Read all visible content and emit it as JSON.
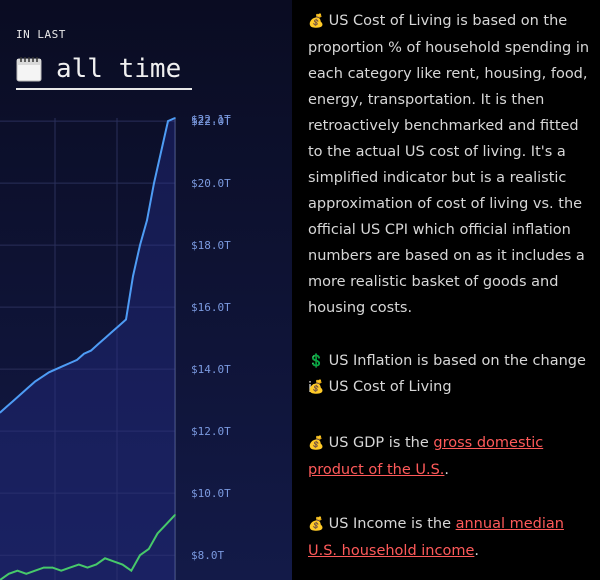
{
  "range": {
    "label": "IN LAST",
    "value": "all time",
    "icon": "calendar-icon"
  },
  "chart_data": {
    "type": "line",
    "y_ticks": [
      "$22.1T",
      "$22.0T",
      "$20.0T",
      "$18.0T",
      "$16.0T",
      "$14.0T",
      "$12.0T",
      "$10.0T",
      "$8.0T"
    ],
    "ylim": [
      7.2,
      22.1
    ],
    "series": [
      {
        "color": "#4e9cf5",
        "values": [
          12.6,
          12.8,
          13.0,
          13.2,
          13.4,
          13.6,
          13.75,
          13.9,
          14.0,
          14.1,
          14.2,
          14.3,
          14.5,
          14.6,
          14.8,
          15.0,
          15.2,
          15.4,
          15.6,
          17.0,
          18.0,
          18.8,
          20.0,
          21.0,
          22.0,
          22.1
        ]
      },
      {
        "color": "#47c96a",
        "values": [
          7.2,
          7.4,
          7.5,
          7.4,
          7.5,
          7.6,
          7.6,
          7.5,
          7.6,
          7.7,
          7.6,
          7.7,
          7.9,
          7.8,
          7.7,
          7.5,
          8.0,
          8.2,
          8.7,
          9.0,
          9.3
        ]
      }
    ],
    "grid": true
  },
  "paragraphs": [
    {
      "emoji": "💰",
      "text": "US Cost of Living is based on the proportion % of household spending in each category like rent, housing, food, energy, transportation. It is then retroactively benchmarked and fitted to the actual US cost of living. It's a simplified indicator but is a realistic approximation of cost of living vs. the official US CPI which official inflation numbers are based on as it includes a more realistic basket of goods and housing costs."
    },
    {
      "emoji": "💲",
      "text": "US Inflation is based on the change in"
    },
    {
      "emoji": "💰",
      "text": "US Cost of Living"
    },
    {
      "emoji": "💰",
      "text": "US GDP is the ",
      "link": "gross domestic product of the U.S.",
      "after": "."
    },
    {
      "emoji": "💰",
      "text": "US Income is the ",
      "link": "annual median U.S. household income",
      "after": "."
    }
  ]
}
